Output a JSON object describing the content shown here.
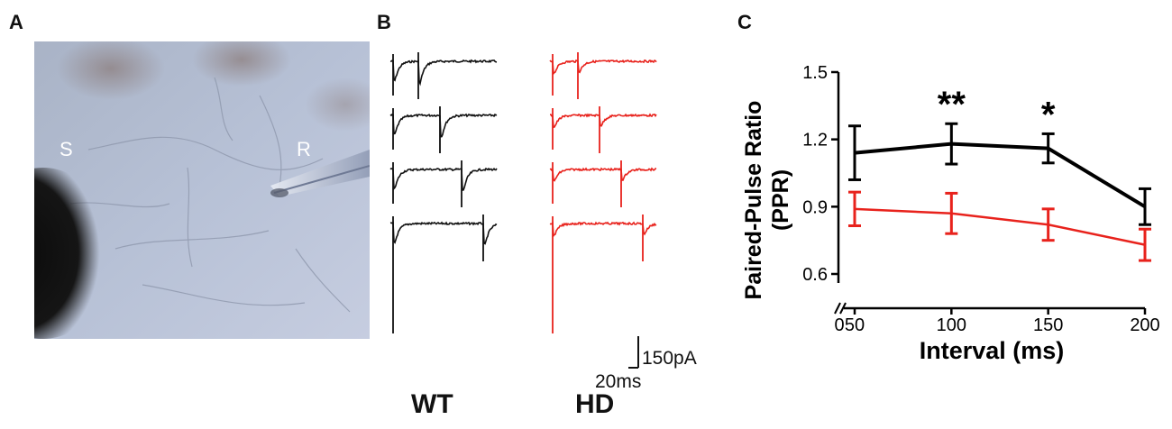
{
  "panels": {
    "a": "A",
    "b": "B",
    "c": "C"
  },
  "photo": {
    "stim_label": "S",
    "record_label": "R"
  },
  "traces": {
    "groups": [
      {
        "label": "WT",
        "color": "#111111"
      },
      {
        "label": "HD",
        "color": "#e8221c"
      }
    ],
    "scale_current": "150pA",
    "scale_time": "20ms"
  },
  "chart_data": {
    "type": "line",
    "xlabel": "Interval (ms)",
    "ylabel_line1": "Paired-Pulse Ratio",
    "ylabel_line2": "(PPR)",
    "x": [
      50,
      100,
      150,
      200
    ],
    "x_ticks": [
      "50",
      "100",
      "150",
      "200"
    ],
    "x_zero_label": "0",
    "xlim": [
      50,
      200
    ],
    "y_ticks": [
      "0.6",
      "0.9",
      "1.2",
      "1.5"
    ],
    "ylim": [
      0.6,
      1.5
    ],
    "axis_break": true,
    "series": [
      {
        "name": "WT",
        "color": "#000000",
        "values": [
          1.14,
          1.18,
          1.16,
          0.9
        ],
        "errors": [
          0.12,
          0.09,
          0.065,
          0.08
        ]
      },
      {
        "name": "HD",
        "color": "#e8221c",
        "values": [
          0.89,
          0.87,
          0.82,
          0.73
        ],
        "errors": [
          0.075,
          0.09,
          0.07,
          0.07
        ]
      }
    ],
    "annotations": [
      {
        "x": 100,
        "text": "**"
      },
      {
        "x": 150,
        "text": "*"
      }
    ]
  }
}
